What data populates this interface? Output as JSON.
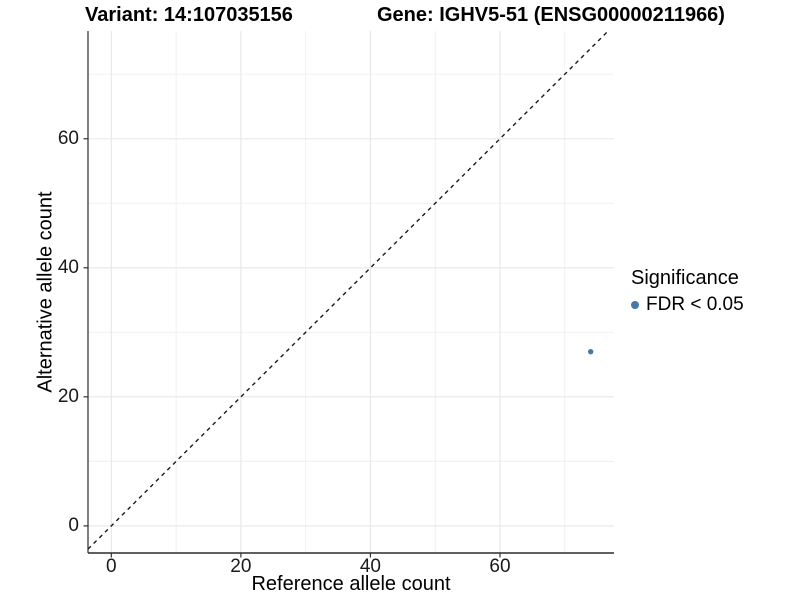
{
  "figure": {
    "titles": [
      {
        "text": "Variant: 14:107035156"
      },
      {
        "text": "Gene: IGHV5-51 (ENSG00000211966)"
      }
    ]
  },
  "axes": {
    "x": {
      "label": "Reference allele count",
      "tick_labels": [
        "0",
        "20",
        "40",
        "60"
      ]
    },
    "y": {
      "label": "Alternative allele count",
      "tick_labels": [
        "0",
        "20",
        "40",
        "60"
      ]
    }
  },
  "legend": {
    "title": "Significance",
    "items": [
      {
        "label": "FDR < 0.05",
        "color": "#4878a8",
        "marker": "circle"
      }
    ]
  },
  "chart_data": {
    "type": "scatter",
    "title": "Variant: 14:107035156 | Gene: IGHV5-51 (ENSG00000211966)",
    "xlabel": "Reference allele count",
    "ylabel": "Alternative allele count",
    "xlim": [
      -3.6,
      77.6
    ],
    "ylim": [
      -4.2,
      76.7
    ],
    "x_ticks": [
      0,
      20,
      40,
      60
    ],
    "y_ticks": [
      0,
      20,
      40,
      60
    ],
    "x_minor_ticks": [
      10,
      30,
      50,
      70
    ],
    "y_minor_ticks": [
      10,
      30,
      50,
      70
    ],
    "grid": true,
    "legend_position": "right",
    "series": [
      {
        "name": "FDR < 0.05",
        "color": "#4878a8",
        "marker": "circle",
        "points": [
          {
            "x": 74,
            "y": 27
          }
        ]
      }
    ],
    "reference_line": {
      "type": "identity y=x",
      "style": "dashed",
      "color": "#1a1a1a"
    }
  },
  "colors": {
    "background": "#ffffff",
    "grid_major": "#e7e7e7",
    "grid_minor": "#efefef",
    "axis_line": "#2b2b2b",
    "tick_mark": "#333333",
    "point": "#4878a8"
  }
}
